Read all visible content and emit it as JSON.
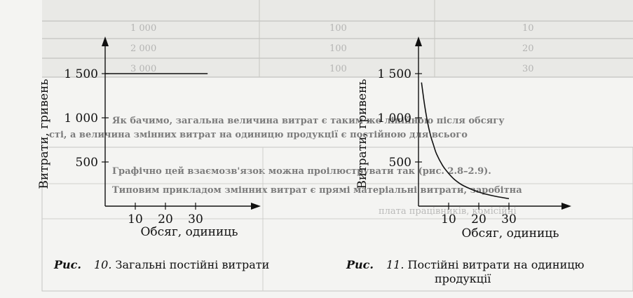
{
  "background": {
    "table_values": [
      {
        "row": "10",
        "a": "1 000",
        "b": "100"
      },
      {
        "row": "20",
        "a": "2 000",
        "b": "100"
      },
      {
        "row": "30",
        "a": "3 000",
        "b": "100"
      }
    ],
    "fragments": [
      "Як бачимо, загальна величина витрат є таким же лінійною після обсягу",
      "сті, а величина змінних витрат на одиницю продукції є постійною для всього",
      "Графічно цей взаємозв'язок можна проілюструвати так (рис. 2.8–2.9).",
      "Типовим прикладом змінних витрат є прямі матеріальні витрати, заробітна",
      "плата працівників, комісійні"
    ]
  },
  "captions": {
    "left": {
      "lead": "Рис.",
      "num": "10.",
      "text": "Загальні постійні витрати"
    },
    "right": {
      "lead": "Рис.",
      "num": "11.",
      "text": "Постійні витрати на одиницю",
      "text2": "продукції"
    }
  },
  "chart_data": [
    {
      "type": "line",
      "xlabel": "Обсяг, одиниць",
      "ylabel": "Витрати, гривень",
      "x_ticks": [
        10,
        20,
        30
      ],
      "y_ticks": [
        500,
        1000,
        1500
      ],
      "y_tick_labels": [
        "500",
        "1 000",
        "1 500"
      ],
      "x_tick_labels": [
        "10",
        "20",
        "30"
      ],
      "xlim": [
        0,
        40
      ],
      "ylim": [
        0,
        1900
      ],
      "series": [
        {
          "x": [
            0,
            34
          ],
          "y": [
            1500,
            1500
          ]
        }
      ]
    },
    {
      "type": "line",
      "xlabel": "Обсяг, одиниць",
      "ylabel": "Витрати, гривень",
      "x_ticks": [
        10,
        20,
        30
      ],
      "y_ticks": [
        500,
        1000,
        1500
      ],
      "y_tick_labels": [
        "500",
        "1 000",
        "1 500"
      ],
      "x_tick_labels": [
        "10",
        "20",
        "30"
      ],
      "xlim": [
        0,
        40
      ],
      "ylim": [
        0,
        1900
      ],
      "series": [
        {
          "x": [
            1,
            2,
            3,
            4,
            5,
            6,
            8,
            10,
            12,
            15,
            20,
            25,
            30
          ],
          "y": [
            1400,
            1150,
            950,
            800,
            690,
            590,
            460,
            370,
            300,
            230,
            160,
            115,
            85
          ]
        }
      ]
    }
  ]
}
